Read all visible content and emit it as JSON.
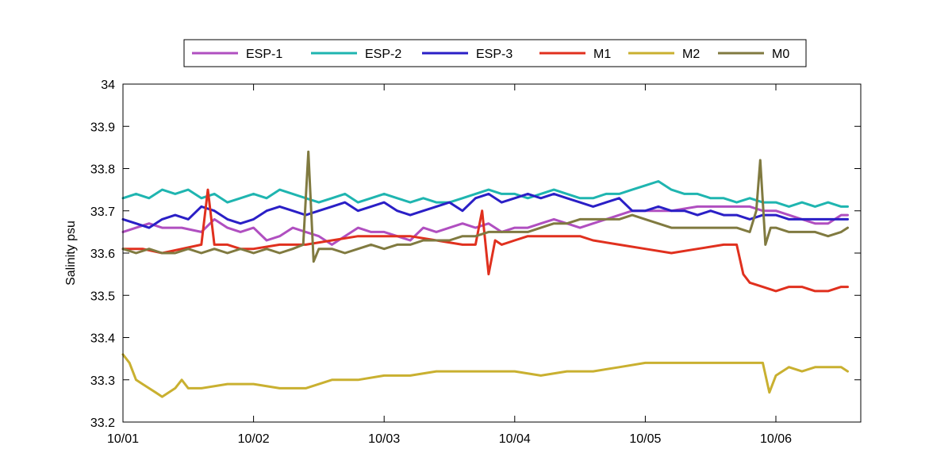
{
  "chart_data": {
    "type": "line",
    "title": "",
    "xlabel": "",
    "ylabel": "Salinity psu",
    "x_unit": "date",
    "xlim": [
      0,
      5.65
    ],
    "ylim": [
      33.2,
      34.0
    ],
    "x_ticks": [
      {
        "label": "10/01",
        "value": 0
      },
      {
        "label": "10/02",
        "value": 1
      },
      {
        "label": "10/03",
        "value": 2
      },
      {
        "label": "10/04",
        "value": 3
      },
      {
        "label": "10/05",
        "value": 4
      },
      {
        "label": "10/06",
        "value": 5
      }
    ],
    "y_ticks": [
      "33.2",
      "33.3",
      "33.4",
      "33.5",
      "33.6",
      "33.7",
      "33.8",
      "33.9",
      "34"
    ],
    "grid": false,
    "legend": "top, horizontal, outside plot",
    "series": [
      {
        "name": "ESP-1",
        "color": "#b04fc0",
        "x": [
          0,
          0.1,
          0.2,
          0.3,
          0.45,
          0.6,
          0.7,
          0.8,
          0.9,
          1.0,
          1.1,
          1.2,
          1.3,
          1.4,
          1.5,
          1.6,
          1.7,
          1.8,
          1.9,
          2.0,
          2.1,
          2.2,
          2.3,
          2.4,
          2.5,
          2.6,
          2.7,
          2.8,
          2.9,
          3.0,
          3.1,
          3.2,
          3.3,
          3.4,
          3.5,
          3.6,
          3.7,
          3.8,
          3.9,
          4.0,
          4.2,
          4.4,
          4.6,
          4.8,
          4.9,
          5.0,
          5.1,
          5.2,
          5.3,
          5.4,
          5.5,
          5.55
        ],
        "y": [
          33.65,
          33.66,
          33.67,
          33.66,
          33.66,
          33.65,
          33.68,
          33.66,
          33.65,
          33.66,
          33.63,
          33.64,
          33.66,
          33.65,
          33.64,
          33.62,
          33.64,
          33.66,
          33.65,
          33.65,
          33.64,
          33.63,
          33.66,
          33.65,
          33.66,
          33.67,
          33.66,
          33.67,
          33.65,
          33.66,
          33.66,
          33.67,
          33.68,
          33.67,
          33.66,
          33.67,
          33.68,
          33.69,
          33.7,
          33.7,
          33.7,
          33.71,
          33.71,
          33.71,
          33.7,
          33.7,
          33.69,
          33.68,
          33.67,
          33.67,
          33.69,
          33.69
        ]
      },
      {
        "name": "ESP-2",
        "color": "#1fb5b0",
        "x": [
          0,
          0.1,
          0.2,
          0.3,
          0.4,
          0.5,
          0.6,
          0.7,
          0.8,
          0.9,
          1.0,
          1.1,
          1.2,
          1.3,
          1.4,
          1.5,
          1.6,
          1.7,
          1.8,
          1.9,
          2.0,
          2.1,
          2.2,
          2.3,
          2.4,
          2.5,
          2.6,
          2.7,
          2.8,
          2.9,
          3.0,
          3.1,
          3.2,
          3.3,
          3.4,
          3.5,
          3.6,
          3.7,
          3.8,
          3.9,
          4.0,
          4.1,
          4.2,
          4.3,
          4.4,
          4.5,
          4.6,
          4.7,
          4.8,
          4.9,
          5.0,
          5.1,
          5.2,
          5.3,
          5.4,
          5.5,
          5.55
        ],
        "y": [
          33.73,
          33.74,
          33.73,
          33.75,
          33.74,
          33.75,
          33.73,
          33.74,
          33.72,
          33.73,
          33.74,
          33.73,
          33.75,
          33.74,
          33.73,
          33.72,
          33.73,
          33.74,
          33.72,
          33.73,
          33.74,
          33.73,
          33.72,
          33.73,
          33.72,
          33.72,
          33.73,
          33.74,
          33.75,
          33.74,
          33.74,
          33.73,
          33.74,
          33.75,
          33.74,
          33.73,
          33.73,
          33.74,
          33.74,
          33.75,
          33.76,
          33.77,
          33.75,
          33.74,
          33.74,
          33.73,
          33.73,
          33.72,
          33.73,
          33.72,
          33.72,
          33.71,
          33.72,
          33.71,
          33.72,
          33.71,
          33.71
        ]
      },
      {
        "name": "ESP-3",
        "color": "#2a1fc6",
        "x": [
          0,
          0.1,
          0.2,
          0.3,
          0.4,
          0.5,
          0.6,
          0.7,
          0.8,
          0.9,
          1.0,
          1.1,
          1.2,
          1.3,
          1.4,
          1.5,
          1.6,
          1.7,
          1.8,
          1.9,
          2.0,
          2.1,
          2.2,
          2.3,
          2.4,
          2.5,
          2.6,
          2.7,
          2.8,
          2.9,
          3.0,
          3.1,
          3.2,
          3.3,
          3.4,
          3.5,
          3.6,
          3.7,
          3.8,
          3.9,
          4.0,
          4.1,
          4.2,
          4.3,
          4.4,
          4.5,
          4.6,
          4.7,
          4.8,
          4.9,
          5.0,
          5.1,
          5.2,
          5.3,
          5.4,
          5.5,
          5.55
        ],
        "y": [
          33.68,
          33.67,
          33.66,
          33.68,
          33.69,
          33.68,
          33.71,
          33.7,
          33.68,
          33.67,
          33.68,
          33.7,
          33.71,
          33.7,
          33.69,
          33.7,
          33.71,
          33.72,
          33.7,
          33.71,
          33.72,
          33.7,
          33.69,
          33.7,
          33.71,
          33.72,
          33.7,
          33.73,
          33.74,
          33.72,
          33.73,
          33.74,
          33.73,
          33.74,
          33.73,
          33.72,
          33.71,
          33.72,
          33.73,
          33.7,
          33.7,
          33.71,
          33.7,
          33.7,
          33.69,
          33.7,
          33.69,
          33.69,
          33.68,
          33.69,
          33.69,
          33.68,
          33.68,
          33.68,
          33.68,
          33.68,
          33.68
        ]
      },
      {
        "name": "M1",
        "color": "#e0301e",
        "x": [
          0,
          0.15,
          0.3,
          0.45,
          0.6,
          0.65,
          0.7,
          0.8,
          0.9,
          1.0,
          1.2,
          1.4,
          1.6,
          1.8,
          2.0,
          2.2,
          2.4,
          2.6,
          2.7,
          2.75,
          2.8,
          2.85,
          2.9,
          3.0,
          3.1,
          3.2,
          3.3,
          3.4,
          3.5,
          3.6,
          3.8,
          4.0,
          4.2,
          4.4,
          4.6,
          4.7,
          4.75,
          4.8,
          4.9,
          5.0,
          5.1,
          5.2,
          5.3,
          5.4,
          5.5,
          5.55
        ],
        "y": [
          33.61,
          33.61,
          33.6,
          33.61,
          33.62,
          33.75,
          33.62,
          33.62,
          33.61,
          33.61,
          33.62,
          33.62,
          33.63,
          33.64,
          33.64,
          33.64,
          33.63,
          33.62,
          33.62,
          33.7,
          33.55,
          33.63,
          33.62,
          33.63,
          33.64,
          33.64,
          33.64,
          33.64,
          33.64,
          33.63,
          33.62,
          33.61,
          33.6,
          33.61,
          33.62,
          33.62,
          33.55,
          33.53,
          33.52,
          33.51,
          33.52,
          33.52,
          33.51,
          33.51,
          33.52,
          33.52
        ]
      },
      {
        "name": "M2",
        "color": "#c9b030",
        "x": [
          0,
          0.05,
          0.1,
          0.15,
          0.2,
          0.25,
          0.3,
          0.35,
          0.4,
          0.45,
          0.5,
          0.6,
          0.8,
          1.0,
          1.2,
          1.4,
          1.6,
          1.8,
          2.0,
          2.2,
          2.4,
          2.6,
          2.8,
          3.0,
          3.2,
          3.4,
          3.6,
          3.8,
          4.0,
          4.2,
          4.4,
          4.6,
          4.8,
          4.9,
          4.95,
          5.0,
          5.1,
          5.2,
          5.3,
          5.4,
          5.5,
          5.55
        ],
        "y": [
          33.36,
          33.34,
          33.3,
          33.29,
          33.28,
          33.27,
          33.26,
          33.27,
          33.28,
          33.3,
          33.28,
          33.28,
          33.29,
          33.29,
          33.28,
          33.28,
          33.3,
          33.3,
          33.31,
          33.31,
          33.32,
          33.32,
          33.32,
          33.32,
          33.31,
          33.32,
          33.32,
          33.33,
          33.34,
          33.34,
          33.34,
          33.34,
          33.34,
          33.34,
          33.27,
          33.31,
          33.33,
          33.32,
          33.33,
          33.33,
          33.33,
          33.32
        ]
      },
      {
        "name": "M0",
        "color": "#807a40",
        "x": [
          0,
          0.1,
          0.2,
          0.3,
          0.4,
          0.5,
          0.6,
          0.7,
          0.8,
          0.9,
          1.0,
          1.1,
          1.2,
          1.3,
          1.38,
          1.42,
          1.46,
          1.5,
          1.6,
          1.7,
          1.8,
          1.9,
          2.0,
          2.1,
          2.2,
          2.3,
          2.4,
          2.5,
          2.6,
          2.7,
          2.8,
          2.9,
          3.0,
          3.1,
          3.2,
          3.3,
          3.4,
          3.5,
          3.6,
          3.7,
          3.8,
          3.9,
          4.0,
          4.2,
          4.4,
          4.6,
          4.7,
          4.8,
          4.85,
          4.88,
          4.92,
          4.96,
          5.0,
          5.1,
          5.2,
          5.3,
          5.4,
          5.5,
          5.55
        ],
        "y": [
          33.61,
          33.6,
          33.61,
          33.6,
          33.6,
          33.61,
          33.6,
          33.61,
          33.6,
          33.61,
          33.6,
          33.61,
          33.6,
          33.61,
          33.62,
          33.84,
          33.58,
          33.61,
          33.61,
          33.6,
          33.61,
          33.62,
          33.61,
          33.62,
          33.62,
          33.63,
          33.63,
          33.63,
          33.64,
          33.64,
          33.65,
          33.65,
          33.65,
          33.65,
          33.66,
          33.67,
          33.67,
          33.68,
          33.68,
          33.68,
          33.68,
          33.69,
          33.68,
          33.66,
          33.66,
          33.66,
          33.66,
          33.65,
          33.7,
          33.82,
          33.62,
          33.66,
          33.66,
          33.65,
          33.65,
          33.65,
          33.64,
          33.65,
          33.66
        ]
      }
    ]
  }
}
